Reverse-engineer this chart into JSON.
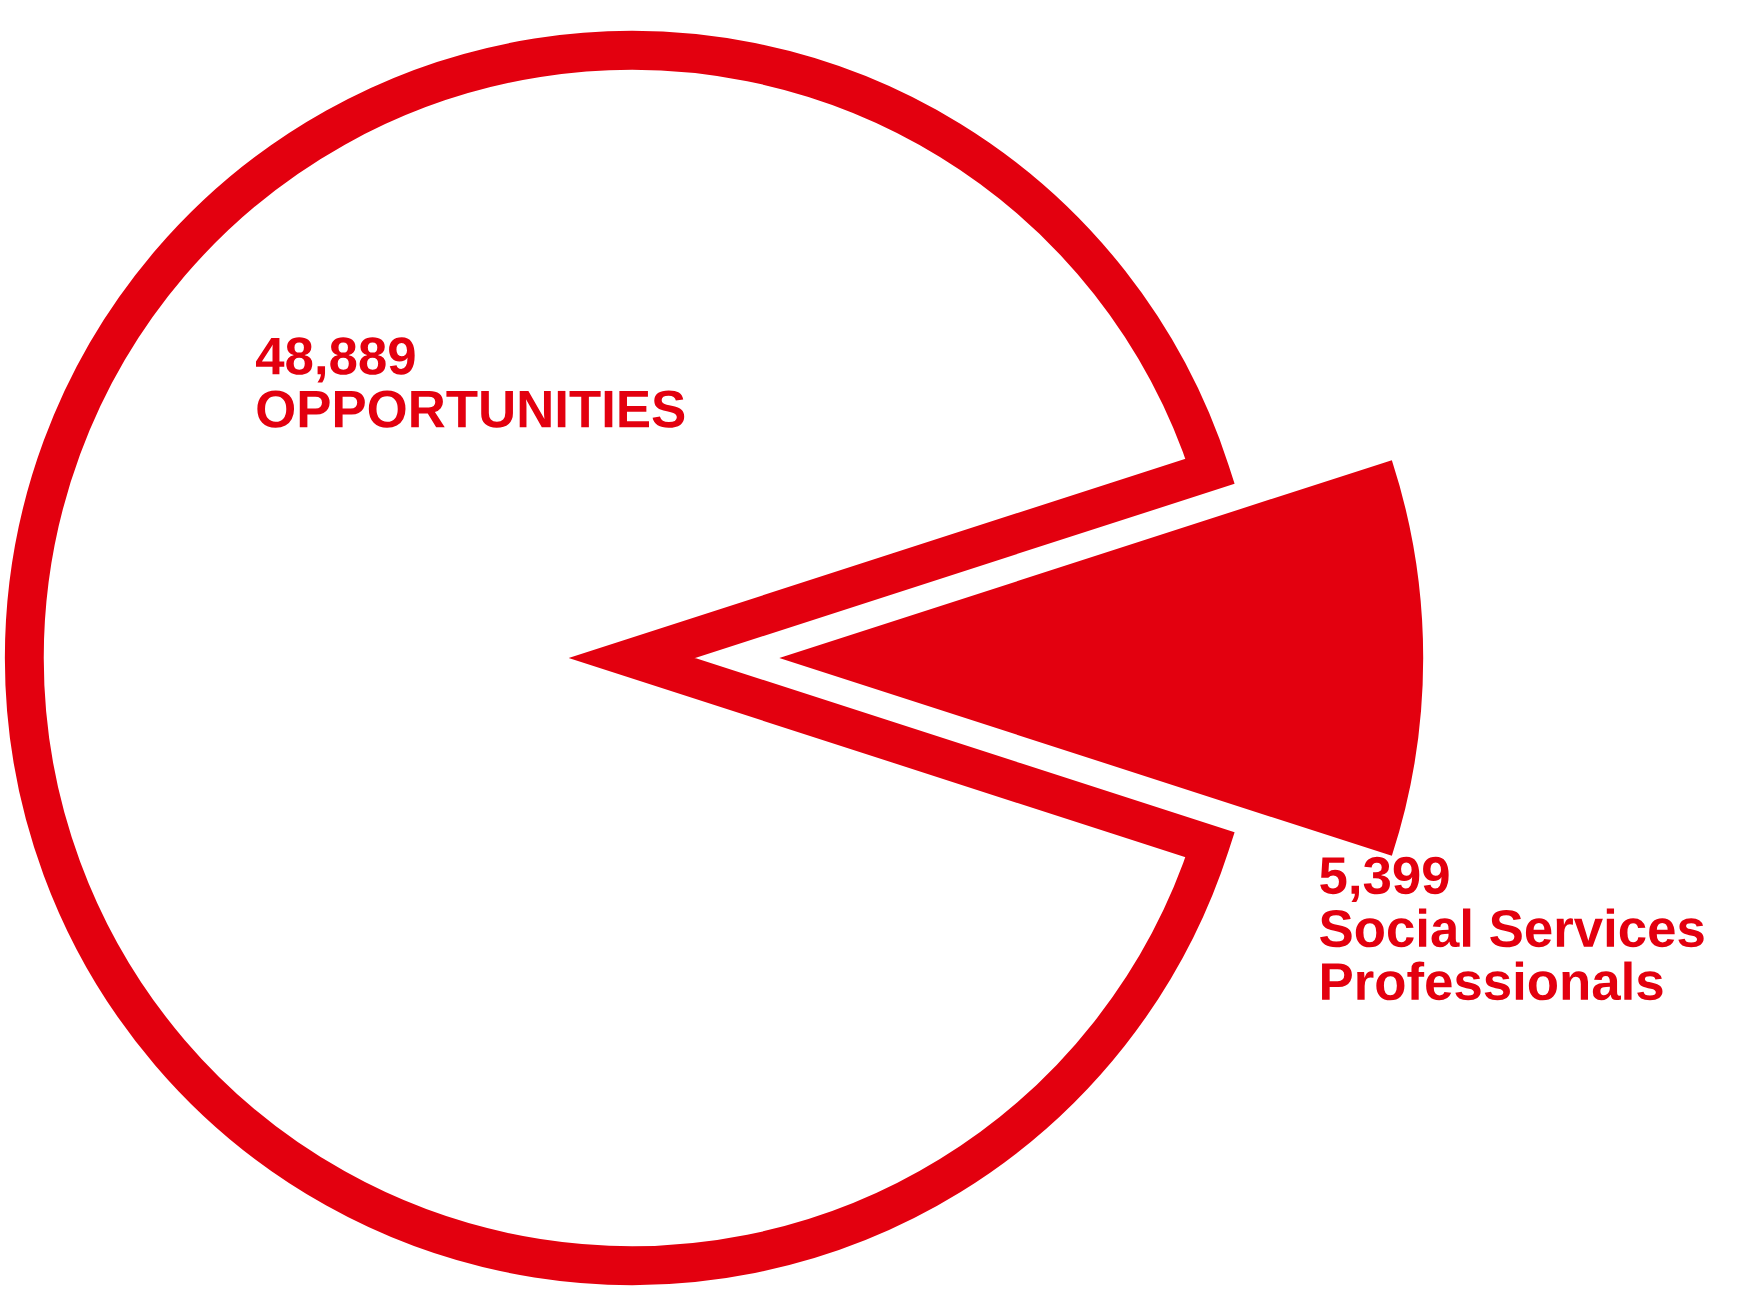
{
  "chart_data": {
    "type": "pie",
    "categories": [
      "OPPORTUNITIES",
      "Social Services\nProfessionals"
    ],
    "values": [
      48889,
      5399
    ],
    "colors": [
      "#e3000f",
      "#e3000f"
    ],
    "value_labels": [
      "48,889",
      "5,399"
    ],
    "legend": false
  }
}
